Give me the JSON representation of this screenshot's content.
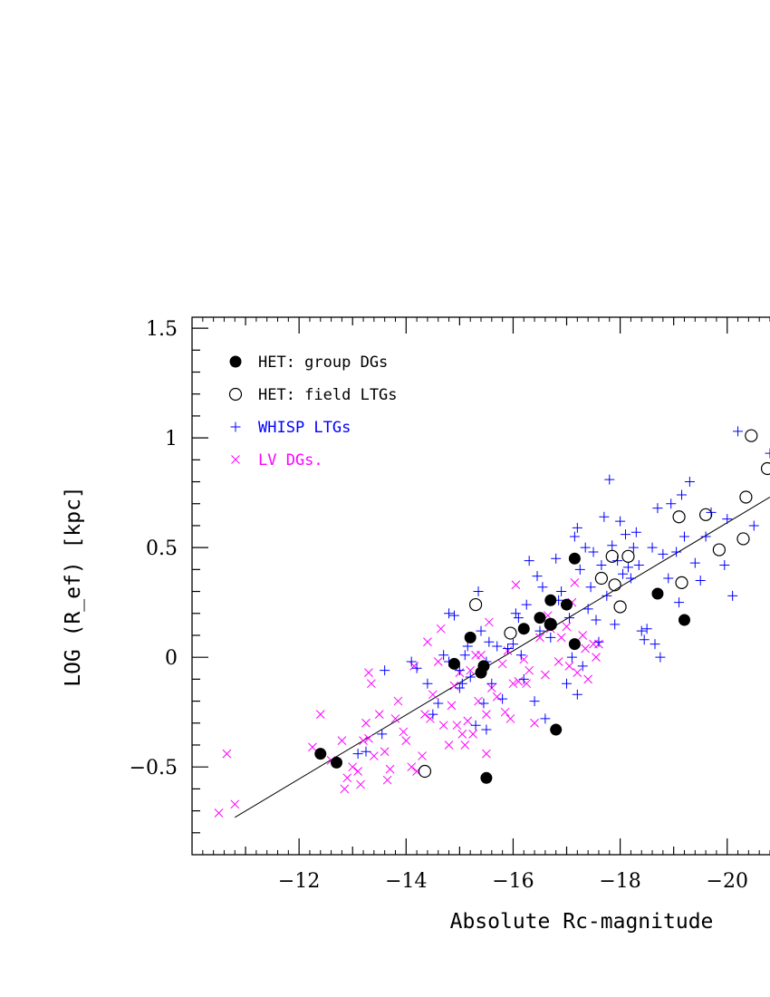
{
  "chart_data": {
    "type": "scatter",
    "title": "",
    "xlabel": "Absolute Rc-magnitude",
    "ylabel": "LOG (R_ef) [kpc]",
    "xlim": [
      -10.0,
      -20.8
    ],
    "ylim": [
      -0.9,
      1.55
    ],
    "x_ticks": [
      -12,
      -14,
      -16,
      -18,
      -20
    ],
    "x_tick_labels": [
      "−12",
      "−14",
      "−16",
      "−18",
      "−20"
    ],
    "y_ticks": [
      -0.5,
      0,
      0.5,
      1,
      1.5
    ],
    "y_tick_labels": [
      "−0.5",
      "0",
      "0.5",
      "1",
      "1.5"
    ],
    "grid": false,
    "legend_position": "top-left",
    "colors": {
      "het_group": "#000000",
      "het_field": "#000000",
      "whisp": "#0000ff",
      "lv": "#ff00ff",
      "fit": "#000000"
    },
    "fit_line": {
      "x": [
        -10.8,
        -20.8
      ],
      "y": [
        -0.73,
        0.73
      ]
    },
    "series": [
      {
        "name": "HET: group DGs",
        "marker": "filled-circle",
        "points": [
          [
            -12.4,
            -0.44
          ],
          [
            -12.7,
            -0.48
          ],
          [
            -14.9,
            -0.03
          ],
          [
            -15.2,
            0.09
          ],
          [
            -15.4,
            -0.07
          ],
          [
            -15.45,
            -0.04
          ],
          [
            -15.5,
            -0.55
          ],
          [
            -16.2,
            0.13
          ],
          [
            -16.5,
            0.18
          ],
          [
            -16.7,
            0.15
          ],
          [
            -16.7,
            0.26
          ],
          [
            -16.8,
            -0.33
          ],
          [
            -17.0,
            0.24
          ],
          [
            -17.15,
            0.45
          ],
          [
            -17.15,
            0.06
          ],
          [
            -18.7,
            0.29
          ],
          [
            -19.2,
            0.17
          ]
        ]
      },
      {
        "name": "HET: field LTGs",
        "marker": "open-circle",
        "points": [
          [
            -14.35,
            -0.52
          ],
          [
            -15.3,
            0.24
          ],
          [
            -15.95,
            0.11
          ],
          [
            -16.7,
            0.15
          ],
          [
            -17.65,
            0.36
          ],
          [
            -17.85,
            0.46
          ],
          [
            -17.9,
            0.33
          ],
          [
            -18.0,
            0.23
          ],
          [
            -18.15,
            0.46
          ],
          [
            -19.1,
            0.64
          ],
          [
            -19.15,
            0.34
          ],
          [
            -19.6,
            0.65
          ],
          [
            -19.85,
            0.49
          ],
          [
            -20.3,
            0.54
          ],
          [
            -20.35,
            0.73
          ],
          [
            -20.45,
            1.01
          ],
          [
            -20.75,
            0.86
          ]
        ]
      },
      {
        "name": "WHISP LTGs",
        "marker": "plus",
        "points": [
          [
            -13.1,
            -0.44
          ],
          [
            -13.25,
            -0.43
          ],
          [
            -13.55,
            -0.35
          ],
          [
            -13.6,
            -0.06
          ],
          [
            -14.1,
            -0.02
          ],
          [
            -14.2,
            -0.05
          ],
          [
            -14.4,
            -0.12
          ],
          [
            -14.5,
            -0.26
          ],
          [
            -14.6,
            -0.21
          ],
          [
            -14.7,
            0.01
          ],
          [
            -14.8,
            -0.02
          ],
          [
            -14.8,
            0.2
          ],
          [
            -14.9,
            0.19
          ],
          [
            -15.0,
            -0.14
          ],
          [
            -15.0,
            -0.06
          ],
          [
            -15.05,
            -0.12
          ],
          [
            -15.1,
            0.01
          ],
          [
            -15.15,
            0.05
          ],
          [
            -15.2,
            -0.09
          ],
          [
            -15.3,
            -0.31
          ],
          [
            -15.35,
            0.3
          ],
          [
            -15.4,
            0.12
          ],
          [
            -15.45,
            -0.21
          ],
          [
            -15.5,
            -0.33
          ],
          [
            -15.5,
            -0.02
          ],
          [
            -15.55,
            0.07
          ],
          [
            -15.6,
            -0.12
          ],
          [
            -15.7,
            0.05
          ],
          [
            -15.8,
            -0.19
          ],
          [
            -15.9,
            0.04
          ],
          [
            -16.0,
            0.06
          ],
          [
            -16.05,
            0.2
          ],
          [
            -16.1,
            0.18
          ],
          [
            -16.15,
            0.01
          ],
          [
            -16.2,
            -0.1
          ],
          [
            -16.25,
            0.24
          ],
          [
            -16.3,
            0.44
          ],
          [
            -16.4,
            -0.2
          ],
          [
            -16.45,
            0.37
          ],
          [
            -16.5,
            0.12
          ],
          [
            -16.55,
            0.32
          ],
          [
            -16.6,
            -0.28
          ],
          [
            -16.7,
            0.09
          ],
          [
            -16.8,
            0.45
          ],
          [
            -16.85,
            0.26
          ],
          [
            -16.9,
            0.3
          ],
          [
            -17.0,
            -0.12
          ],
          [
            -17.05,
            0.18
          ],
          [
            -17.1,
            0.0
          ],
          [
            -17.15,
            0.55
          ],
          [
            -17.2,
            0.59
          ],
          [
            -17.2,
            -0.17
          ],
          [
            -17.25,
            0.4
          ],
          [
            -17.3,
            -0.04
          ],
          [
            -17.35,
            0.5
          ],
          [
            -17.4,
            0.22
          ],
          [
            -17.45,
            0.32
          ],
          [
            -17.5,
            0.48
          ],
          [
            -17.55,
            0.17
          ],
          [
            -17.6,
            0.07
          ],
          [
            -17.65,
            0.42
          ],
          [
            -17.7,
            0.64
          ],
          [
            -17.75,
            0.28
          ],
          [
            -17.8,
            0.81
          ],
          [
            -17.85,
            0.51
          ],
          [
            -17.9,
            0.15
          ],
          [
            -17.95,
            0.44
          ],
          [
            -18.0,
            0.62
          ],
          [
            -18.05,
            0.38
          ],
          [
            -18.1,
            0.56
          ],
          [
            -18.15,
            0.41
          ],
          [
            -18.2,
            0.36
          ],
          [
            -18.25,
            0.5
          ],
          [
            -18.3,
            0.57
          ],
          [
            -18.35,
            0.42
          ],
          [
            -18.4,
            0.12
          ],
          [
            -18.45,
            0.08
          ],
          [
            -18.5,
            0.13
          ],
          [
            -18.6,
            0.5
          ],
          [
            -18.65,
            0.06
          ],
          [
            -18.7,
            0.68
          ],
          [
            -18.75,
            0.0
          ],
          [
            -18.8,
            0.47
          ],
          [
            -18.9,
            0.36
          ],
          [
            -18.95,
            0.7
          ],
          [
            -19.05,
            0.48
          ],
          [
            -19.1,
            0.25
          ],
          [
            -19.15,
            0.74
          ],
          [
            -19.2,
            0.55
          ],
          [
            -19.3,
            0.8
          ],
          [
            -19.4,
            0.43
          ],
          [
            -19.5,
            0.35
          ],
          [
            -19.6,
            0.55
          ],
          [
            -19.7,
            0.66
          ],
          [
            -19.95,
            0.42
          ],
          [
            -20.0,
            0.63
          ],
          [
            -20.1,
            0.28
          ],
          [
            -20.2,
            1.03
          ],
          [
            -20.5,
            0.6
          ],
          [
            -20.8,
            0.93
          ]
        ]
      },
      {
        "name": "LV DGs.",
        "marker": "cross",
        "points": [
          [
            -10.5,
            -0.71
          ],
          [
            -10.65,
            -0.44
          ],
          [
            -10.8,
            -0.67
          ],
          [
            -12.25,
            -0.41
          ],
          [
            -12.4,
            -0.26
          ],
          [
            -12.6,
            -0.47
          ],
          [
            -12.8,
            -0.38
          ],
          [
            -12.85,
            -0.6
          ],
          [
            -12.9,
            -0.55
          ],
          [
            -13.0,
            -0.5
          ],
          [
            -13.1,
            -0.52
          ],
          [
            -13.15,
            -0.58
          ],
          [
            -13.2,
            -0.38
          ],
          [
            -13.25,
            -0.3
          ],
          [
            -13.3,
            -0.37
          ],
          [
            -13.3,
            -0.07
          ],
          [
            -13.35,
            -0.12
          ],
          [
            -13.4,
            -0.45
          ],
          [
            -13.5,
            -0.26
          ],
          [
            -13.6,
            -0.43
          ],
          [
            -13.65,
            -0.56
          ],
          [
            -13.7,
            -0.51
          ],
          [
            -13.8,
            -0.28
          ],
          [
            -13.85,
            -0.2
          ],
          [
            -13.95,
            -0.34
          ],
          [
            -14.0,
            -0.38
          ],
          [
            -14.1,
            -0.5
          ],
          [
            -14.15,
            -0.04
          ],
          [
            -14.2,
            -0.52
          ],
          [
            -14.3,
            -0.45
          ],
          [
            -14.35,
            -0.26
          ],
          [
            -14.4,
            0.07
          ],
          [
            -14.45,
            -0.28
          ],
          [
            -14.5,
            -0.17
          ],
          [
            -14.6,
            -0.02
          ],
          [
            -14.65,
            0.13
          ],
          [
            -14.7,
            -0.31
          ],
          [
            -14.8,
            -0.4
          ],
          [
            -14.85,
            -0.22
          ],
          [
            -14.9,
            -0.13
          ],
          [
            -14.95,
            -0.31
          ],
          [
            -15.0,
            -0.07
          ],
          [
            -15.05,
            -0.35
          ],
          [
            -15.1,
            -0.4
          ],
          [
            -15.15,
            -0.29
          ],
          [
            -15.2,
            -0.06
          ],
          [
            -15.25,
            -0.35
          ],
          [
            -15.3,
            0.01
          ],
          [
            -15.35,
            -0.2
          ],
          [
            -15.4,
            0.01
          ],
          [
            -15.5,
            -0.26
          ],
          [
            -15.5,
            -0.44
          ],
          [
            -15.55,
            0.16
          ],
          [
            -15.6,
            -0.14
          ],
          [
            -15.7,
            -0.18
          ],
          [
            -15.8,
            -0.03
          ],
          [
            -15.85,
            -0.25
          ],
          [
            -15.9,
            0.03
          ],
          [
            -15.95,
            -0.28
          ],
          [
            -16.0,
            -0.12
          ],
          [
            -16.05,
            0.33
          ],
          [
            -16.1,
            -0.11
          ],
          [
            -16.2,
            -0.01
          ],
          [
            -16.25,
            -0.12
          ],
          [
            -16.3,
            -0.06
          ],
          [
            -16.4,
            -0.3
          ],
          [
            -16.5,
            0.09
          ],
          [
            -16.6,
            -0.08
          ],
          [
            -16.65,
            0.19
          ],
          [
            -16.7,
            0.13
          ],
          [
            -16.8,
            -0.33
          ],
          [
            -16.85,
            -0.02
          ],
          [
            -16.9,
            0.09
          ],
          [
            -17.0,
            0.14
          ],
          [
            -17.05,
            -0.04
          ],
          [
            -17.1,
            0.25
          ],
          [
            -17.15,
            0.34
          ],
          [
            -17.2,
            -0.07
          ],
          [
            -17.3,
            0.1
          ],
          [
            -17.35,
            0.04
          ],
          [
            -17.4,
            -0.1
          ],
          [
            -17.5,
            0.06
          ],
          [
            -17.55,
            0.0
          ],
          [
            -17.6,
            0.06
          ]
        ]
      }
    ]
  }
}
